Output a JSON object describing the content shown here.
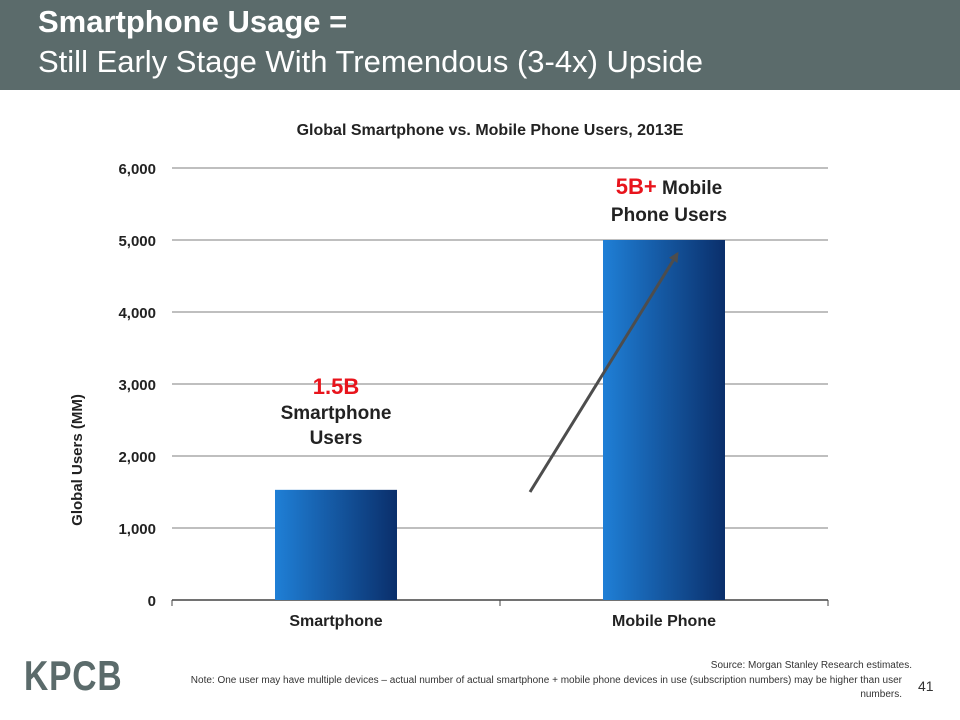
{
  "slide": {
    "title_line1": "Smartphone Usage =",
    "title_line2": "Still Early Stage With Tremendous (3-4x) Upside",
    "logo": "KPCB",
    "source": "Source: Morgan Stanley Research estimates.",
    "note": "Note: One user may have multiple devices – actual number of actual smartphone + mobile phone devices in use (subscription numbers) may be higher than user numbers.",
    "page_number": "41"
  },
  "chart_data": {
    "type": "bar",
    "title": "Global Smartphone vs. Mobile Phone Users, 2013E",
    "xlabel": "",
    "ylabel": "Global Users (MM)",
    "categories": [
      "Smartphone",
      "Mobile Phone"
    ],
    "values": [
      1530,
      5000
    ],
    "ylim": [
      0,
      6000
    ],
    "yticks": [
      0,
      1000,
      2000,
      3000,
      4000,
      5000,
      6000
    ],
    "ytick_labels": [
      "0",
      "1,000",
      "2,000",
      "3,000",
      "4,000",
      "5,000",
      "6,000"
    ],
    "grid": true,
    "colors": {
      "bar_light": "#1f7fd6",
      "bar_dark": "#0a2f6b",
      "highlight": "#e8141c",
      "arrow": "#4d4d4d"
    },
    "annotations": [
      {
        "highlight": "1.5B",
        "text_lines": [
          "Smartphone",
          "Users"
        ]
      },
      {
        "highlight": "5B+",
        "text_lines": [
          "Mobile",
          "Phone Users"
        ]
      }
    ],
    "arrow": {
      "from": [
        1,
        1500
      ],
      "to": [
        1.55,
        4950
      ]
    }
  }
}
